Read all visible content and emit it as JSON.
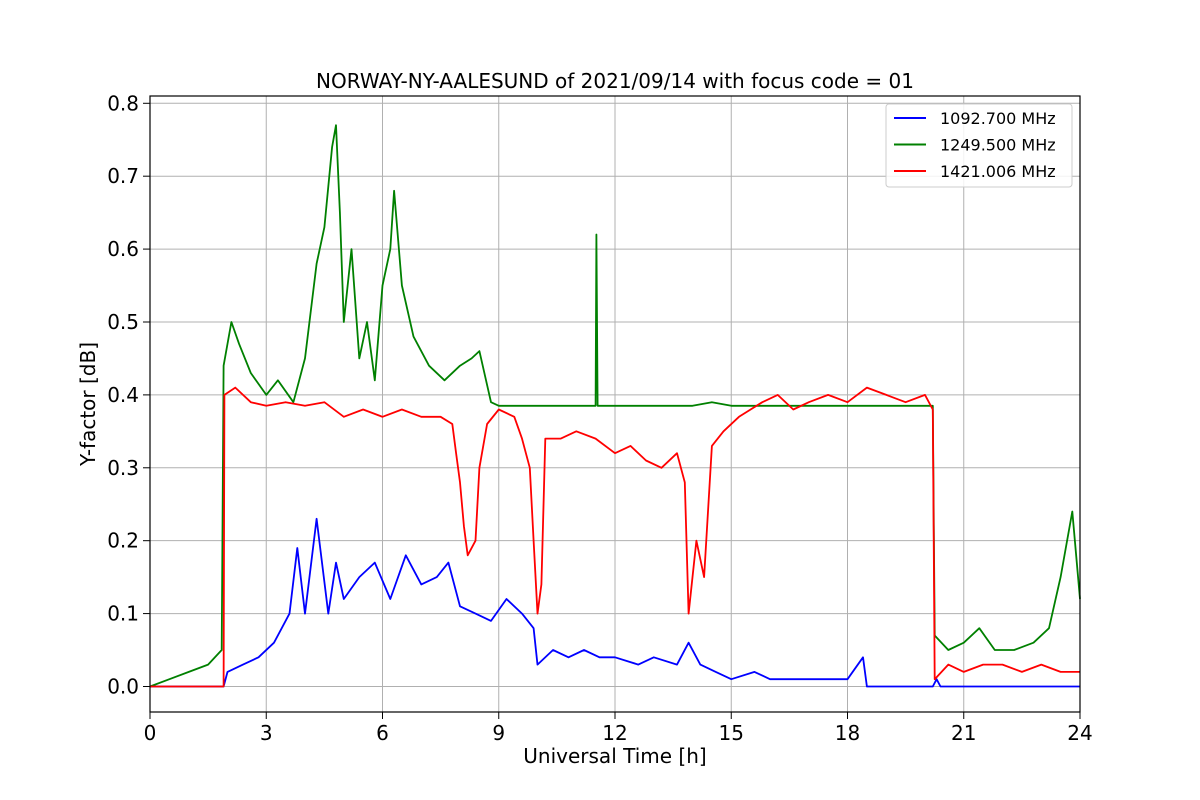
{
  "chart_data": {
    "type": "line",
    "title": "NORWAY-NY-AALESUND of 2021/09/14 with focus code = 01",
    "xlabel": "Universal Time [h]",
    "ylabel": "Y-factor [dB]",
    "xlim": [
      0,
      24
    ],
    "ylim": [
      -0.035,
      0.81
    ],
    "x_ticks": [
      0,
      3,
      6,
      9,
      12,
      15,
      18,
      21,
      24
    ],
    "y_ticks": [
      0.0,
      0.1,
      0.2,
      0.3,
      0.4,
      0.5,
      0.6,
      0.7,
      0.8
    ],
    "x_tick_labels": [
      "0",
      "3",
      "6",
      "9",
      "12",
      "15",
      "18",
      "21",
      "24"
    ],
    "y_tick_labels": [
      "0.0",
      "0.1",
      "0.2",
      "0.3",
      "0.4",
      "0.5",
      "0.6",
      "0.7",
      "0.8"
    ],
    "grid": true,
    "legend_position": "top-right",
    "series": [
      {
        "name": "1092.700 MHz",
        "color": "#0000ff",
        "points": [
          [
            0,
            0
          ],
          [
            1.9,
            0
          ],
          [
            2.0,
            0.02
          ],
          [
            2.4,
            0.03
          ],
          [
            2.8,
            0.04
          ],
          [
            3.2,
            0.06
          ],
          [
            3.6,
            0.1
          ],
          [
            3.8,
            0.19
          ],
          [
            4.0,
            0.1
          ],
          [
            4.3,
            0.23
          ],
          [
            4.6,
            0.1
          ],
          [
            4.8,
            0.17
          ],
          [
            5.0,
            0.12
          ],
          [
            5.4,
            0.15
          ],
          [
            5.8,
            0.17
          ],
          [
            6.2,
            0.12
          ],
          [
            6.6,
            0.18
          ],
          [
            7.0,
            0.14
          ],
          [
            7.4,
            0.15
          ],
          [
            7.7,
            0.17
          ],
          [
            8.0,
            0.11
          ],
          [
            8.4,
            0.1
          ],
          [
            8.8,
            0.09
          ],
          [
            9.2,
            0.12
          ],
          [
            9.6,
            0.1
          ],
          [
            9.9,
            0.08
          ],
          [
            10.0,
            0.03
          ],
          [
            10.4,
            0.05
          ],
          [
            10.8,
            0.04
          ],
          [
            11.2,
            0.05
          ],
          [
            11.6,
            0.04
          ],
          [
            12.0,
            0.04
          ],
          [
            12.6,
            0.03
          ],
          [
            13.0,
            0.04
          ],
          [
            13.6,
            0.03
          ],
          [
            13.9,
            0.06
          ],
          [
            14.2,
            0.03
          ],
          [
            14.6,
            0.02
          ],
          [
            15.0,
            0.01
          ],
          [
            15.6,
            0.02
          ],
          [
            16.0,
            0.01
          ],
          [
            17.0,
            0.01
          ],
          [
            18.0,
            0.01
          ],
          [
            18.4,
            0.04
          ],
          [
            18.5,
            0
          ],
          [
            20.2,
            0
          ],
          [
            20.3,
            0.01
          ],
          [
            20.4,
            0
          ],
          [
            24.0,
            0
          ]
        ]
      },
      {
        "name": "1249.500 MHz",
        "color": "#008000",
        "points": [
          [
            0,
            0
          ],
          [
            0.5,
            0.01
          ],
          [
            1.0,
            0.02
          ],
          [
            1.5,
            0.03
          ],
          [
            1.85,
            0.05
          ],
          [
            1.9,
            0.44
          ],
          [
            2.1,
            0.5
          ],
          [
            2.3,
            0.47
          ],
          [
            2.6,
            0.43
          ],
          [
            3.0,
            0.4
          ],
          [
            3.3,
            0.42
          ],
          [
            3.7,
            0.39
          ],
          [
            4.0,
            0.45
          ],
          [
            4.3,
            0.58
          ],
          [
            4.5,
            0.63
          ],
          [
            4.7,
            0.74
          ],
          [
            4.8,
            0.77
          ],
          [
            4.9,
            0.65
          ],
          [
            5.0,
            0.5
          ],
          [
            5.2,
            0.6
          ],
          [
            5.4,
            0.45
          ],
          [
            5.6,
            0.5
          ],
          [
            5.8,
            0.42
          ],
          [
            6.0,
            0.55
          ],
          [
            6.2,
            0.6
          ],
          [
            6.3,
            0.68
          ],
          [
            6.5,
            0.55
          ],
          [
            6.8,
            0.48
          ],
          [
            7.2,
            0.44
          ],
          [
            7.6,
            0.42
          ],
          [
            8.0,
            0.44
          ],
          [
            8.3,
            0.45
          ],
          [
            8.5,
            0.46
          ],
          [
            8.8,
            0.39
          ],
          [
            9.0,
            0.385
          ],
          [
            11.5,
            0.385
          ],
          [
            11.52,
            0.62
          ],
          [
            11.55,
            0.385
          ],
          [
            14.0,
            0.385
          ],
          [
            14.5,
            0.39
          ],
          [
            15.0,
            0.385
          ],
          [
            15.5,
            0.385
          ],
          [
            20.2,
            0.385
          ],
          [
            20.25,
            0.07
          ],
          [
            20.6,
            0.05
          ],
          [
            21.0,
            0.06
          ],
          [
            21.4,
            0.08
          ],
          [
            21.8,
            0.05
          ],
          [
            22.3,
            0.05
          ],
          [
            22.8,
            0.06
          ],
          [
            23.2,
            0.08
          ],
          [
            23.5,
            0.15
          ],
          [
            23.8,
            0.24
          ],
          [
            24.0,
            0.12
          ]
        ]
      },
      {
        "name": "1421.006 MHz",
        "color": "#ff0000",
        "points": [
          [
            0,
            0
          ],
          [
            1.9,
            0
          ],
          [
            1.92,
            0.4
          ],
          [
            2.2,
            0.41
          ],
          [
            2.6,
            0.39
          ],
          [
            3.0,
            0.385
          ],
          [
            3.5,
            0.39
          ],
          [
            4.0,
            0.385
          ],
          [
            4.5,
            0.39
          ],
          [
            5.0,
            0.37
          ],
          [
            5.5,
            0.38
          ],
          [
            6.0,
            0.37
          ],
          [
            6.5,
            0.38
          ],
          [
            7.0,
            0.37
          ],
          [
            7.5,
            0.37
          ],
          [
            7.8,
            0.36
          ],
          [
            7.9,
            0.32
          ],
          [
            8.0,
            0.28
          ],
          [
            8.1,
            0.22
          ],
          [
            8.2,
            0.18
          ],
          [
            8.4,
            0.2
          ],
          [
            8.5,
            0.3
          ],
          [
            8.7,
            0.36
          ],
          [
            9.0,
            0.38
          ],
          [
            9.4,
            0.37
          ],
          [
            9.6,
            0.34
          ],
          [
            9.8,
            0.3
          ],
          [
            9.9,
            0.2
          ],
          [
            10.0,
            0.1
          ],
          [
            10.1,
            0.14
          ],
          [
            10.2,
            0.34
          ],
          [
            10.6,
            0.34
          ],
          [
            11.0,
            0.35
          ],
          [
            11.5,
            0.34
          ],
          [
            12.0,
            0.32
          ],
          [
            12.4,
            0.33
          ],
          [
            12.8,
            0.31
          ],
          [
            13.2,
            0.3
          ],
          [
            13.6,
            0.32
          ],
          [
            13.8,
            0.28
          ],
          [
            13.9,
            0.1
          ],
          [
            14.0,
            0.15
          ],
          [
            14.1,
            0.2
          ],
          [
            14.3,
            0.15
          ],
          [
            14.5,
            0.33
          ],
          [
            14.8,
            0.35
          ],
          [
            15.2,
            0.37
          ],
          [
            15.5,
            0.38
          ],
          [
            15.8,
            0.39
          ],
          [
            16.2,
            0.4
          ],
          [
            16.6,
            0.38
          ],
          [
            17.0,
            0.39
          ],
          [
            17.5,
            0.4
          ],
          [
            18.0,
            0.39
          ],
          [
            18.5,
            0.41
          ],
          [
            19.0,
            0.4
          ],
          [
            19.5,
            0.39
          ],
          [
            20.0,
            0.4
          ],
          [
            20.2,
            0.38
          ],
          [
            20.25,
            0.01
          ],
          [
            20.6,
            0.03
          ],
          [
            21.0,
            0.02
          ],
          [
            21.5,
            0.03
          ],
          [
            22.0,
            0.03
          ],
          [
            22.5,
            0.02
          ],
          [
            23.0,
            0.03
          ],
          [
            23.5,
            0.02
          ],
          [
            24.0,
            0.02
          ]
        ]
      }
    ]
  }
}
